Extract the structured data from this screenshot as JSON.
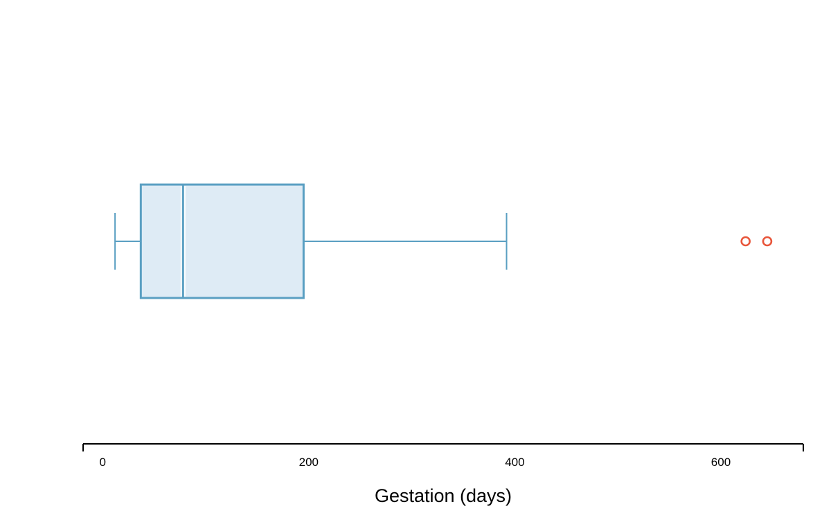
{
  "chart_data": {
    "type": "boxplot",
    "orientation": "horizontal",
    "title": "",
    "xlabel": "Gestation (days)",
    "ylabel": "",
    "xlim": [
      -19,
      680
    ],
    "xticks": [
      0,
      200,
      400,
      600
    ],
    "tick_labels": [
      "0",
      "200",
      "400",
      "600"
    ],
    "grid": false,
    "legend": "none",
    "box": {
      "whisker_low": 12,
      "q1": 37,
      "median": 78,
      "q3": 195,
      "whisker_high": 392,
      "outliers": [
        624,
        645
      ]
    },
    "colors": {
      "box_fill": "#deebf5",
      "box_stroke": "#5a9fc2",
      "median_highlight": "#ffffff",
      "outlier": "#e8553a",
      "axis": "#000000"
    }
  }
}
